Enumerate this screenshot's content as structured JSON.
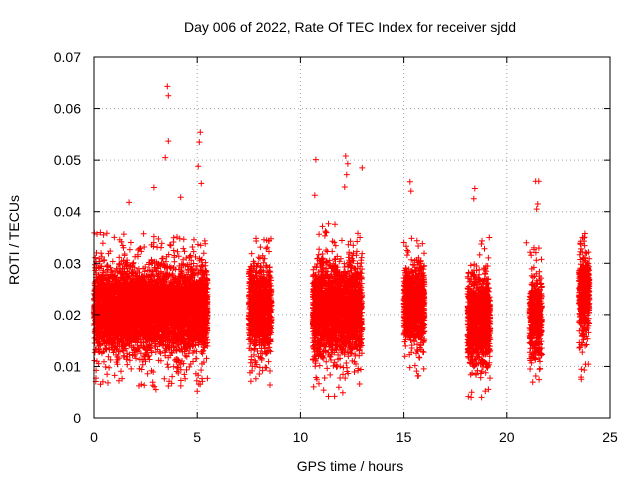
{
  "chart_data": {
    "type": "scatter",
    "title": "Day 006 of 2022, Rate Of TEC Index for receiver sjdd",
    "xlabel": "GPS time / hours",
    "ylabel": "ROTI / TECUs",
    "xlim": [
      0,
      25
    ],
    "ylim": [
      0,
      0.07
    ],
    "x_ticks": [
      0,
      5,
      10,
      15,
      20,
      25
    ],
    "x_tick_labels": [
      "0",
      "5",
      "10",
      "15",
      "20",
      "25"
    ],
    "y_ticks": [
      0,
      0.01,
      0.02,
      0.03,
      0.04,
      0.05,
      0.06,
      0.07
    ],
    "y_tick_labels": [
      "0",
      "0.01",
      "0.02",
      "0.03",
      "0.04",
      "0.05",
      "0.06",
      "0.07"
    ],
    "grid": true,
    "marker": "+",
    "marker_color": "#ff0000",
    "clusters": [
      {
        "x_start": 0.0,
        "x_end": 5.5,
        "typical_min": 0.008,
        "typical_max": 0.032,
        "center": 0.021
      },
      {
        "x_start": 7.5,
        "x_end": 8.6,
        "typical_min": 0.01,
        "typical_max": 0.034,
        "center": 0.021
      },
      {
        "x_start": 10.6,
        "x_end": 13.0,
        "typical_min": 0.008,
        "typical_max": 0.035,
        "center": 0.021
      },
      {
        "x_start": 15.0,
        "x_end": 16.0,
        "typical_min": 0.011,
        "typical_max": 0.034,
        "center": 0.022
      },
      {
        "x_start": 18.1,
        "x_end": 19.2,
        "typical_min": 0.007,
        "typical_max": 0.032,
        "center": 0.019
      },
      {
        "x_start": 21.1,
        "x_end": 21.7,
        "typical_min": 0.009,
        "typical_max": 0.03,
        "center": 0.02
      },
      {
        "x_start": 23.5,
        "x_end": 24.0,
        "typical_min": 0.012,
        "typical_max": 0.039,
        "center": 0.024
      }
    ],
    "outliers": [
      [
        3.55,
        0.0643
      ],
      [
        3.6,
        0.0625
      ],
      [
        3.6,
        0.0537
      ],
      [
        3.45,
        0.0505
      ],
      [
        5.15,
        0.0554
      ],
      [
        5.1,
        0.0535
      ],
      [
        5.05,
        0.0488
      ],
      [
        5.2,
        0.0455
      ],
      [
        10.75,
        0.0501
      ],
      [
        12.2,
        0.0508
      ],
      [
        12.3,
        0.0493
      ],
      [
        12.25,
        0.0472
      ],
      [
        12.15,
        0.0448
      ],
      [
        13.0,
        0.0485
      ],
      [
        15.3,
        0.0458
      ],
      [
        15.35,
        0.044
      ],
      [
        18.45,
        0.0445
      ],
      [
        18.4,
        0.0425
      ],
      [
        21.4,
        0.0459
      ],
      [
        21.55,
        0.0459
      ],
      [
        21.5,
        0.0415
      ],
      [
        21.45,
        0.0405
      ],
      [
        10.7,
        0.0432
      ],
      [
        2.9,
        0.0447
      ],
      [
        4.2,
        0.0428
      ],
      [
        1.7,
        0.0418
      ],
      [
        3.0,
        0.0055
      ],
      [
        5.0,
        0.0052
      ],
      [
        18.3,
        0.005
      ],
      [
        3.6,
        0.0062
      ],
      [
        19.15,
        0.035
      ],
      [
        20.95,
        0.034
      ]
    ]
  }
}
